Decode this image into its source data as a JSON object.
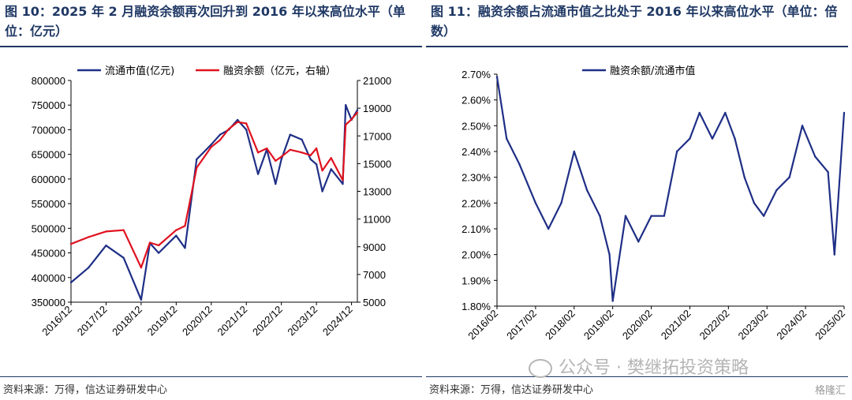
{
  "left": {
    "title": "图 10：2025 年 2 月融资余额再次回升到 2016 年以来高位水平（单位：亿元）",
    "source": "资料来源：万得，信达证券研发中心"
  },
  "right": {
    "title": "图 11：融资余额占流通市值之比处于 2016 年以来高位水平（单位：倍数）",
    "source": "资料来源：万得，信达证券研发中心"
  },
  "watermark": "公众号 · 樊继拓投资策略",
  "corner_badge": "格隆汇",
  "colors": {
    "market_cap": "#1f2f86",
    "margin": "#e0121f",
    "axis": "#000000",
    "title": "#1f3864"
  },
  "chart_data": [
    {
      "type": "line",
      "x_tick_labels": [
        "2016/12",
        "2017/12",
        "2018/12",
        "2019/12",
        "2020/12",
        "2021/12",
        "2022/12",
        "2023/12",
        "2024/12"
      ],
      "x": [
        "2016/12",
        "2017/06",
        "2017/12",
        "2018/06",
        "2018/12",
        "2019/03",
        "2019/06",
        "2019/12",
        "2020/03",
        "2020/07",
        "2020/12",
        "2021/03",
        "2021/06",
        "2021/09",
        "2021/12",
        "2022/04",
        "2022/07",
        "2022/10",
        "2022/12",
        "2023/03",
        "2023/07",
        "2023/10",
        "2023/12",
        "2024/02",
        "2024/05",
        "2024/09",
        "2024/10",
        "2024/12",
        "2025/02"
      ],
      "series": [
        {
          "name": "流通市值(亿元)",
          "axis": "left",
          "values": [
            390000,
            420000,
            465000,
            440000,
            355000,
            470000,
            450000,
            485000,
            460000,
            640000,
            670000,
            690000,
            700000,
            720000,
            700000,
            610000,
            660000,
            590000,
            640000,
            690000,
            680000,
            640000,
            630000,
            575000,
            620000,
            590000,
            750000,
            720000,
            740000
          ]
        },
        {
          "name": "融资余额（亿元，右轴）",
          "axis": "right",
          "values": [
            9200,
            9700,
            10100,
            10200,
            7500,
            9300,
            9100,
            10200,
            10500,
            14700,
            16200,
            16700,
            17500,
            18000,
            17900,
            15800,
            16100,
            15200,
            15500,
            16000,
            15800,
            15600,
            16100,
            14500,
            15400,
            13800,
            17800,
            18200,
            18700
          ]
        }
      ],
      "y_left": {
        "range": [
          350000,
          800000
        ],
        "ticks": [
          350000,
          400000,
          450000,
          500000,
          550000,
          600000,
          650000,
          700000,
          750000,
          800000
        ]
      },
      "y_right": {
        "range": [
          5000,
          21000
        ],
        "ticks": [
          5000,
          7000,
          9000,
          11000,
          13000,
          15000,
          17000,
          19000,
          21000
        ]
      },
      "legend": [
        "流通市值(亿元)",
        "融资余额（亿元，右轴）"
      ],
      "legend_position": "top",
      "grid": false
    },
    {
      "type": "line",
      "x_tick_labels": [
        "2016/02",
        "2017/02",
        "2018/02",
        "2019/02",
        "2020/02",
        "2021/02",
        "2022/02",
        "2023/02",
        "2024/02",
        "2025/02"
      ],
      "x": [
        "2016/02",
        "2016/05",
        "2016/09",
        "2017/02",
        "2017/06",
        "2017/10",
        "2018/02",
        "2018/06",
        "2018/10",
        "2019/01",
        "2019/02",
        "2019/06",
        "2019/10",
        "2020/02",
        "2020/06",
        "2020/10",
        "2021/02",
        "2021/05",
        "2021/09",
        "2022/01",
        "2022/04",
        "2022/07",
        "2022/10",
        "2023/01",
        "2023/05",
        "2023/09",
        "2024/01",
        "2024/05",
        "2024/09",
        "2024/11",
        "2025/02"
      ],
      "series": [
        {
          "name": "融资余额/流通市值",
          "axis": "left",
          "values": [
            0.0269,
            0.0245,
            0.0235,
            0.022,
            0.021,
            0.022,
            0.024,
            0.0225,
            0.0215,
            0.02,
            0.0182,
            0.0215,
            0.0205,
            0.0215,
            0.0215,
            0.024,
            0.0245,
            0.0255,
            0.0245,
            0.0255,
            0.0245,
            0.023,
            0.022,
            0.0215,
            0.0225,
            0.023,
            0.025,
            0.0238,
            0.0232,
            0.02,
            0.0255
          ]
        }
      ],
      "y_left": {
        "range": [
          0.018,
          0.027
        ],
        "ticks": [
          "1.80%",
          "1.90%",
          "2.00%",
          "2.10%",
          "2.20%",
          "2.30%",
          "2.40%",
          "2.50%",
          "2.60%",
          "2.70%"
        ]
      },
      "legend": [
        "融资余额/流通市值"
      ],
      "legend_position": "top",
      "grid": false
    }
  ]
}
